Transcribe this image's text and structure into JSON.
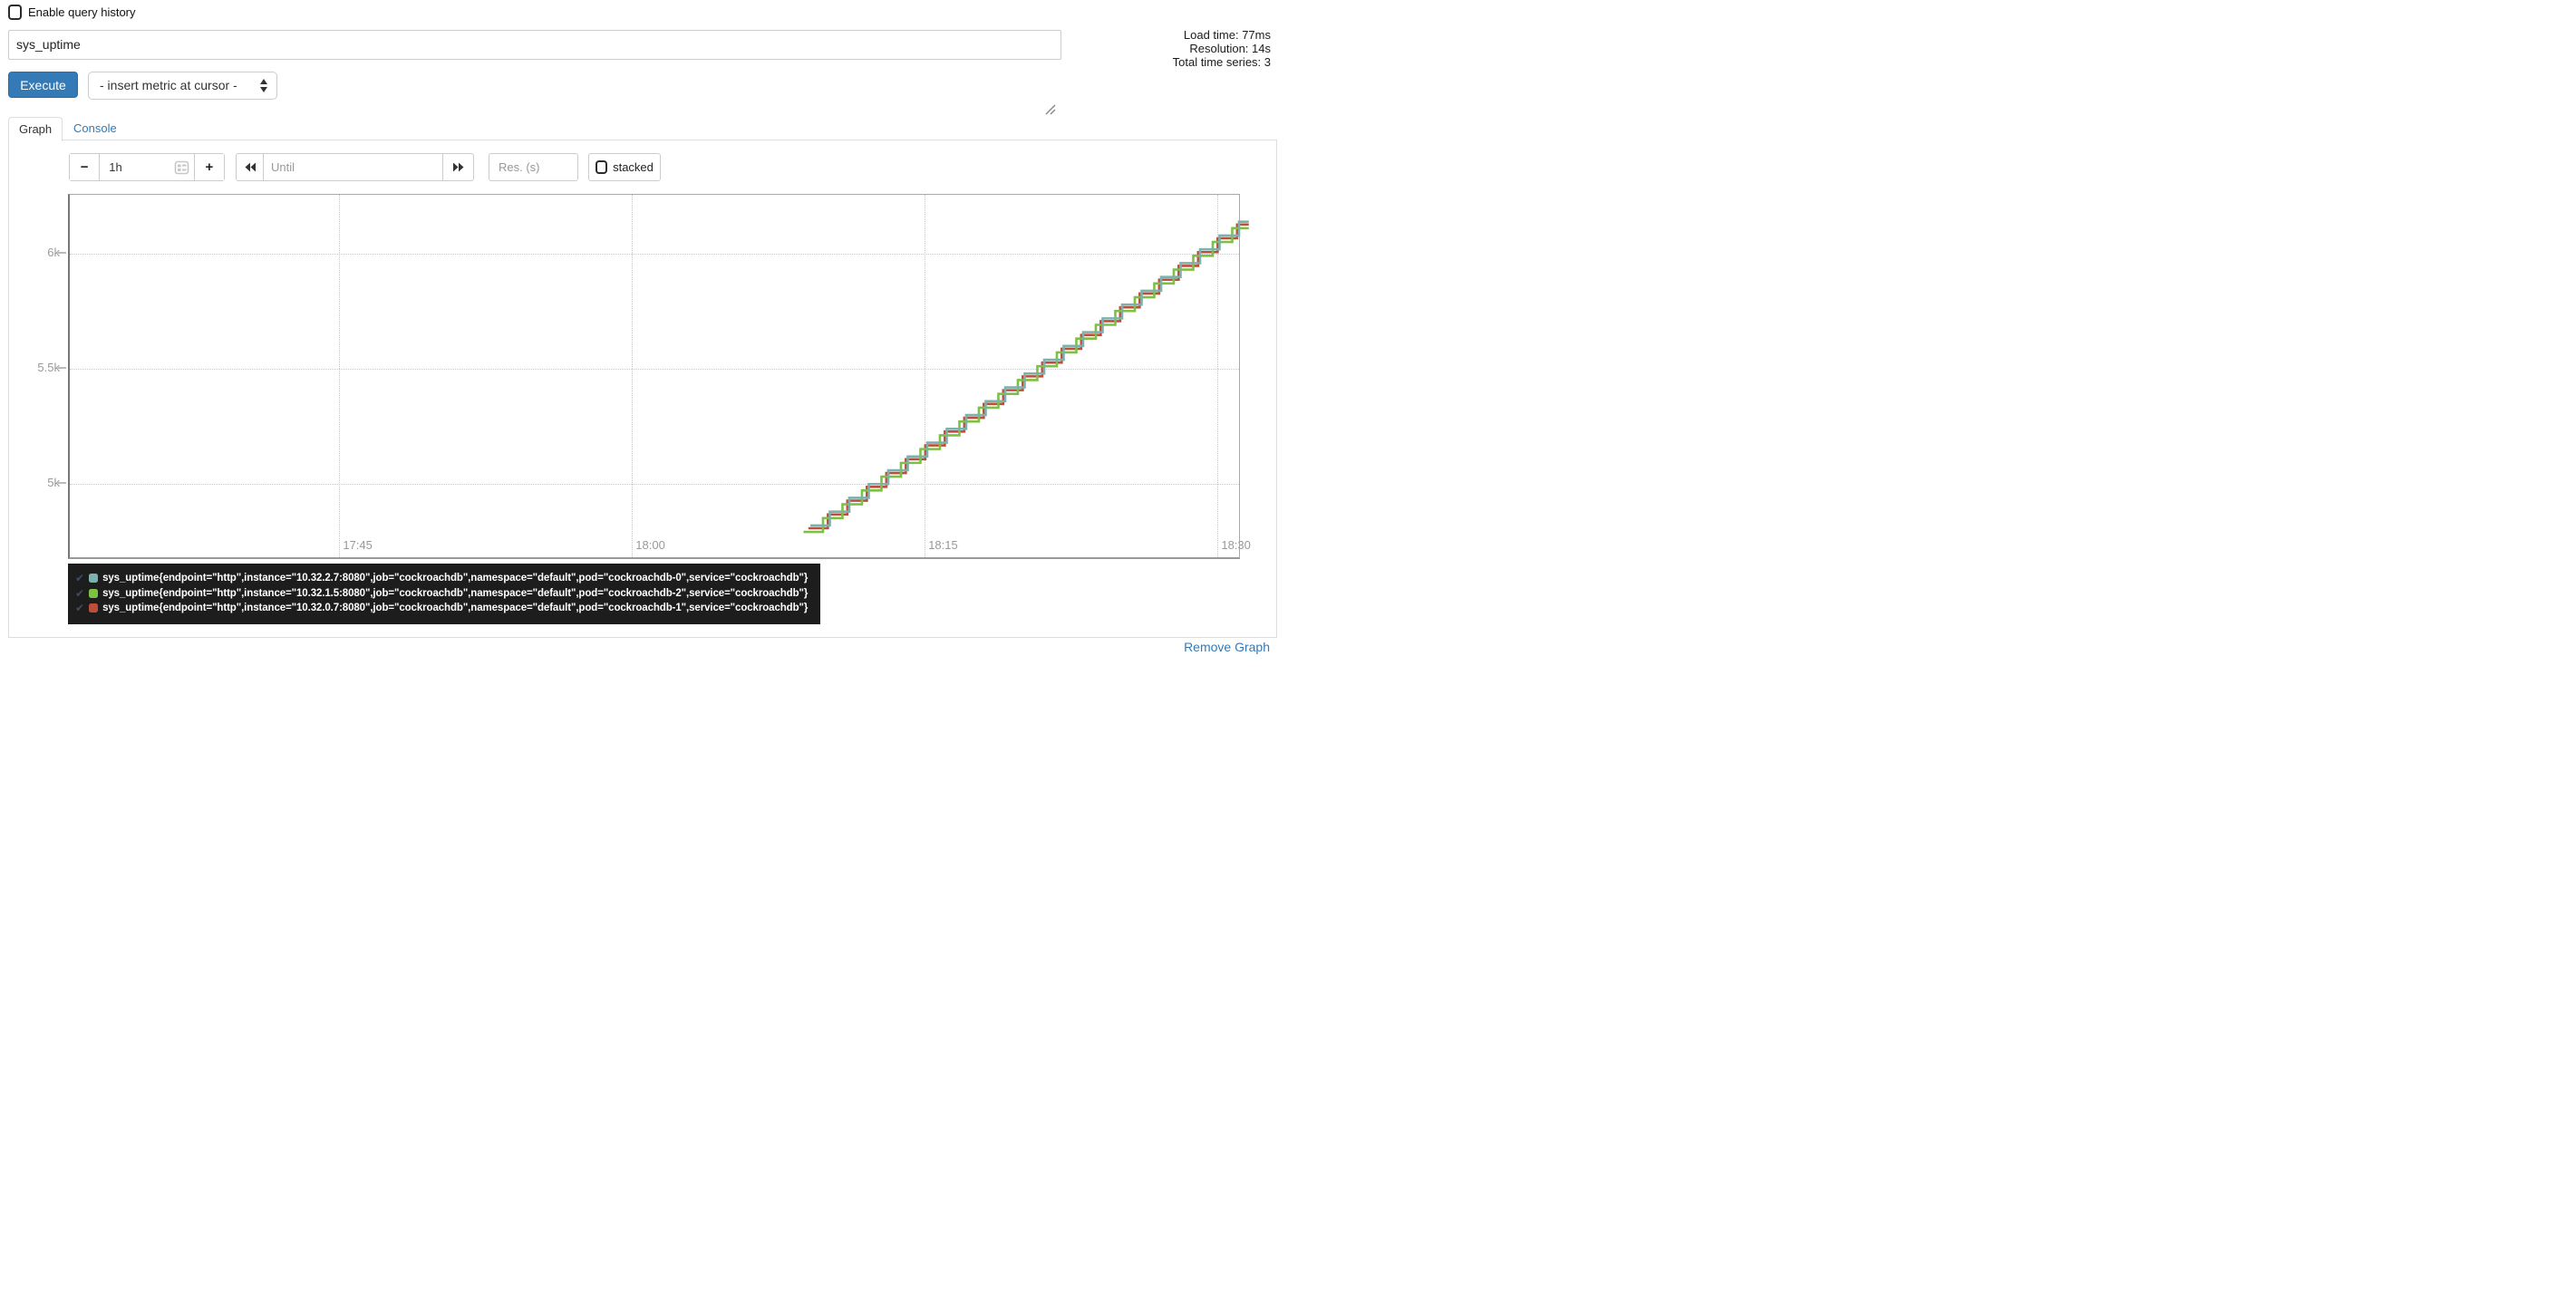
{
  "colors": {
    "accent_blue": "#337ab7",
    "legend_bg": "#1d1d1d",
    "axis_line": "#777777",
    "grid_dotted": "#c8c8c8",
    "tick_label": "#999999",
    "legend_check": "#3c4d63"
  },
  "header": {
    "enable_query_history_label": "Enable query history",
    "query_value": "sys_uptime",
    "stats": {
      "load_time": "Load time: 77ms",
      "resolution": "Resolution: 14s",
      "total_series": "Total time series: 3"
    },
    "execute_label": "Execute",
    "metric_dropdown_value": "- insert metric at cursor -"
  },
  "tabs": {
    "graph": "Graph",
    "console": "Console"
  },
  "controls": {
    "minus": "−",
    "range_value": "1h",
    "plus": "+",
    "until_placeholder": "Until",
    "res_placeholder": "Res. (s)",
    "stacked_label": "stacked"
  },
  "chart_data": {
    "type": "line",
    "line_style": "step-after",
    "grid": true,
    "legend_position": "bottom-left",
    "x_axis": {
      "range_minutes": [
        0,
        60
      ],
      "ticks": [
        {
          "label": "17:45",
          "minute": 13.83
        },
        {
          "label": "18:00",
          "minute": 28.85
        },
        {
          "label": "18:15",
          "minute": 43.87
        },
        {
          "label": "18:30",
          "minute": 58.9
        }
      ]
    },
    "y_axis": {
      "range": [
        4680,
        6255
      ],
      "ticks": [
        {
          "label": "5k",
          "value": 5000
        },
        {
          "label": "5.5k",
          "value": 5500
        },
        {
          "label": "6k",
          "value": 6000
        }
      ]
    },
    "series": [
      {
        "name": "sys_uptime{endpoint=\"http\",instance=\"10.32.2.7:8080\",job=\"cockroachdb\",namespace=\"default\",pod=\"cockroachdb-0\",service=\"cockroachdb\"}",
        "color": "#7db1ad",
        "start_minute": 38.0,
        "start_value": 4818,
        "end_minute": 60,
        "end_value": 6138,
        "step_seconds": 60,
        "slope_units_per_second": 1
      },
      {
        "name": "sys_uptime{endpoint=\"http\",instance=\"10.32.1.5:8080\",job=\"cockroachdb\",namespace=\"default\",pod=\"cockroachdb-2\",service=\"cockroachdb\"}",
        "color": "#7cc144",
        "start_minute": 37.65,
        "start_value": 4790,
        "end_minute": 60,
        "end_value": 6110,
        "step_seconds": 60,
        "slope_units_per_second": 1
      },
      {
        "name": "sys_uptime{endpoint=\"http\",instance=\"10.32.0.7:8080\",job=\"cockroachdb\",namespace=\"default\",pod=\"cockroachdb-1\",service=\"cockroachdb\"}",
        "color": "#be4e3b",
        "start_minute": 37.9,
        "start_value": 4806,
        "end_minute": 60,
        "end_value": 6126,
        "step_seconds": 60,
        "slope_units_per_second": 1
      }
    ],
    "legend_check_glyph": "✔"
  },
  "footer": {
    "remove_graph": "Remove Graph"
  }
}
